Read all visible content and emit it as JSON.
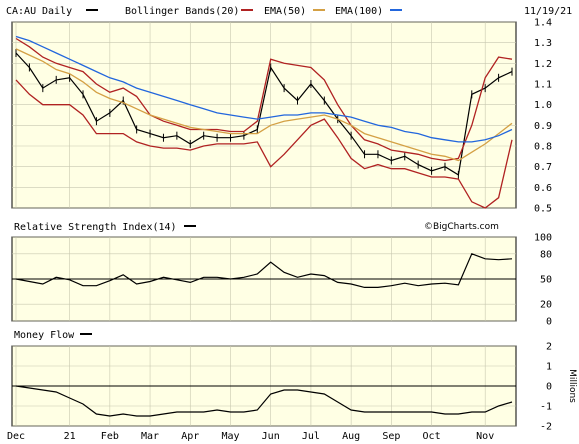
{
  "chart_data": [
    {
      "type": "line",
      "panel": "price",
      "symbol": "CA:AU",
      "interval": "Daily",
      "date": "11/19/21",
      "watermark": "©BigCharts.com",
      "legend": [
        {
          "label": "Bollinger Bands(20)",
          "color": "#b02222"
        },
        {
          "label": "EMA(50)",
          "color": "#d4a044"
        },
        {
          "label": "EMA(100)",
          "color": "#2266dd"
        }
      ],
      "ylim": [
        0.5,
        1.4
      ],
      "yticks": [
        "1.4",
        "1.3",
        "1.2",
        "1.1",
        "1.0",
        "0.9",
        "0.8",
        "0.7",
        "0.6",
        "0.5"
      ],
      "grid": true,
      "x": [
        "Dec",
        "Dec",
        "Dec",
        "21",
        "21",
        "21",
        "Feb",
        "Feb",
        "Feb",
        "Mar",
        "Mar",
        "Mar",
        "Apr",
        "Apr",
        "Apr",
        "May",
        "May",
        "May",
        "Jun",
        "Jun",
        "Jun",
        "Jul",
        "Jul",
        "Jul",
        "Aug",
        "Aug",
        "Aug",
        "Sep",
        "Sep",
        "Sep",
        "Oct",
        "Oct",
        "Oct",
        "Oct",
        "Nov",
        "Nov",
        "Nov",
        "Nov"
      ],
      "series": [
        {
          "name": "CA:AU",
          "role": "price",
          "color": "#000000",
          "values": [
            1.25,
            1.18,
            1.08,
            1.12,
            1.13,
            1.05,
            0.92,
            0.96,
            1.02,
            0.88,
            0.86,
            0.84,
            0.85,
            0.81,
            0.85,
            0.84,
            0.84,
            0.85,
            0.88,
            1.18,
            1.08,
            1.02,
            1.1,
            1.02,
            0.93,
            0.85,
            0.76,
            0.76,
            0.73,
            0.75,
            0.71,
            0.68,
            0.7,
            0.66,
            1.05,
            1.08,
            1.13,
            1.16
          ]
        },
        {
          "name": "Bollinger Bands(20)",
          "role": "bb-upper",
          "color": "#b02222",
          "values": [
            1.32,
            1.28,
            1.23,
            1.2,
            1.18,
            1.16,
            1.1,
            1.06,
            1.08,
            1.04,
            0.95,
            0.92,
            0.9,
            0.88,
            0.88,
            0.88,
            0.87,
            0.87,
            0.92,
            1.22,
            1.2,
            1.19,
            1.18,
            1.12,
            1.0,
            0.9,
            0.83,
            0.81,
            0.78,
            0.77,
            0.76,
            0.74,
            0.73,
            0.74,
            0.9,
            1.13,
            1.23,
            1.22
          ]
        },
        {
          "name": "Bollinger Bands(20)",
          "role": "bb-lower",
          "color": "#b02222",
          "values": [
            1.12,
            1.05,
            1.0,
            1.0,
            1.0,
            0.95,
            0.86,
            0.86,
            0.86,
            0.82,
            0.8,
            0.79,
            0.79,
            0.78,
            0.8,
            0.81,
            0.81,
            0.81,
            0.82,
            0.7,
            0.76,
            0.83,
            0.9,
            0.93,
            0.84,
            0.74,
            0.69,
            0.71,
            0.69,
            0.69,
            0.67,
            0.65,
            0.65,
            0.64,
            0.53,
            0.5,
            0.55,
            0.83
          ]
        },
        {
          "name": "EMA(50)",
          "role": "ema50",
          "color": "#d4a044",
          "values": [
            1.27,
            1.24,
            1.21,
            1.17,
            1.15,
            1.11,
            1.06,
            1.03,
            1.01,
            0.98,
            0.95,
            0.93,
            0.91,
            0.89,
            0.88,
            0.87,
            0.86,
            0.86,
            0.86,
            0.9,
            0.92,
            0.93,
            0.94,
            0.95,
            0.93,
            0.9,
            0.86,
            0.84,
            0.82,
            0.8,
            0.78,
            0.76,
            0.75,
            0.73,
            0.77,
            0.81,
            0.86,
            0.91
          ]
        },
        {
          "name": "EMA(100)",
          "role": "ema100",
          "color": "#2266dd",
          "values": [
            1.33,
            1.31,
            1.28,
            1.25,
            1.22,
            1.19,
            1.16,
            1.13,
            1.11,
            1.08,
            1.06,
            1.04,
            1.02,
            1.0,
            0.98,
            0.96,
            0.95,
            0.94,
            0.93,
            0.94,
            0.95,
            0.95,
            0.96,
            0.96,
            0.95,
            0.94,
            0.92,
            0.9,
            0.89,
            0.87,
            0.86,
            0.84,
            0.83,
            0.82,
            0.82,
            0.83,
            0.85,
            0.88
          ]
        }
      ]
    },
    {
      "type": "line",
      "panel": "rsi",
      "title": "Relative Strength Index(14)",
      "ylim": [
        0,
        100
      ],
      "yticks": [
        "100",
        "80",
        "50",
        "20",
        "0"
      ],
      "reference_line": 50,
      "grid": true,
      "series": [
        {
          "name": "Relative Strength Index(14)",
          "color": "#000000",
          "values": [
            50,
            47,
            44,
            52,
            49,
            42,
            42,
            48,
            55,
            44,
            47,
            52,
            49,
            46,
            52,
            52,
            50,
            52,
            56,
            70,
            58,
            52,
            56,
            54,
            46,
            44,
            40,
            40,
            42,
            45,
            42,
            44,
            45,
            43,
            80,
            74,
            73,
            74
          ]
        }
      ]
    },
    {
      "type": "line",
      "panel": "money-flow",
      "title": "Money Flow",
      "yaxis_label": "Millions",
      "ylim": [
        -2,
        2
      ],
      "yticks": [
        "2",
        "1",
        "0",
        "-1",
        "-2"
      ],
      "reference_line": 0,
      "grid": true,
      "series": [
        {
          "name": "Money Flow",
          "color": "#000000",
          "values": [
            0.0,
            -0.1,
            -0.2,
            -0.3,
            -0.6,
            -0.9,
            -1.4,
            -1.5,
            -1.4,
            -1.5,
            -1.5,
            -1.4,
            -1.3,
            -1.3,
            -1.3,
            -1.2,
            -1.3,
            -1.3,
            -1.2,
            -0.4,
            -0.2,
            -0.2,
            -0.3,
            -0.4,
            -0.8,
            -1.2,
            -1.3,
            -1.3,
            -1.3,
            -1.3,
            -1.3,
            -1.3,
            -1.4,
            -1.4,
            -1.3,
            -1.3,
            -1.0,
            -0.8
          ]
        }
      ]
    }
  ],
  "xaxis": {
    "labels": [
      "Dec",
      "21",
      "Feb",
      "Mar",
      "Apr",
      "May",
      "Jun",
      "Jul",
      "Aug",
      "Sep",
      "Oct",
      "Nov"
    ],
    "label_index": [
      0,
      4,
      7,
      10,
      13,
      16,
      19,
      22,
      25,
      28,
      31,
      35
    ]
  }
}
